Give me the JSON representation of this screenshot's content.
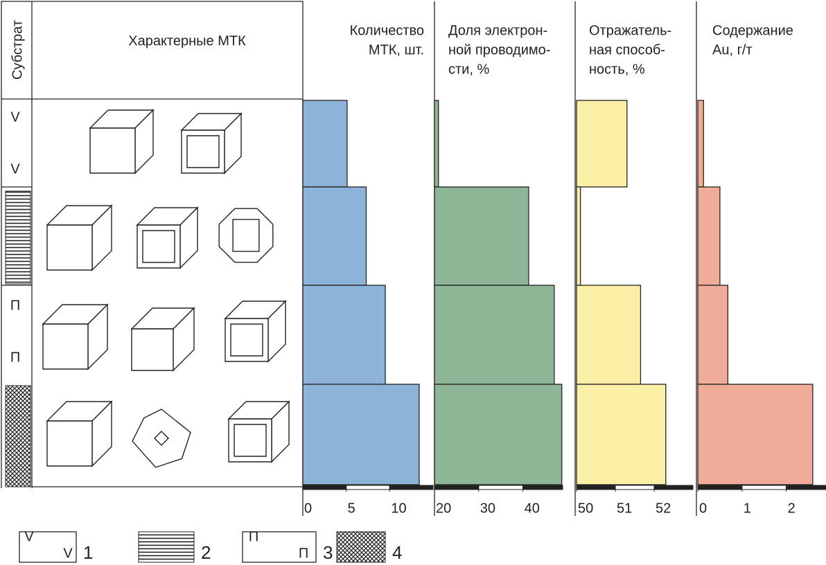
{
  "header": {
    "substrate": "Субстрат",
    "crystals": "Характерные МТК"
  },
  "substrate_marks": {
    "row_1": [
      "V",
      "V"
    ],
    "row_3": [
      "П",
      "П"
    ]
  },
  "chart_data": [
    {
      "type": "bar",
      "orientation": "horizontal",
      "title": [
        "Количество",
        "МТК, шт."
      ],
      "values": [
        5.1,
        7.3,
        9.5,
        13.4
      ],
      "color": "#8db3d9",
      "xlim": [
        0,
        15
      ],
      "xticks": [
        0,
        5,
        10
      ]
    },
    {
      "type": "bar",
      "orientation": "horizontal",
      "title": [
        "Доля электрон-",
        "ной проводимо-",
        "сти, %"
      ],
      "values": [
        20.9,
        41.3,
        47.1,
        48.8
      ],
      "color": "#8db596",
      "xlim": [
        20,
        49
      ],
      "xticks": [
        20,
        30,
        40
      ]
    },
    {
      "type": "bar",
      "orientation": "horizontal",
      "title": [
        "Отражатель-",
        "ная способ-",
        "ность, %"
      ],
      "values": [
        51.3,
        50.1,
        51.65,
        52.3
      ],
      "color": "#fbf0a6",
      "xlim": [
        50,
        53
      ],
      "xticks": [
        50,
        51,
        52
      ]
    },
    {
      "type": "bar",
      "orientation": "horizontal",
      "title": [
        "Содержание",
        "Au, г/т"
      ],
      "values": [
        0.13,
        0.5,
        0.68,
        2.6
      ],
      "color": "#f0ac98",
      "xlim": [
        0,
        2.9
      ],
      "xticks": [
        0,
        1,
        2
      ]
    }
  ],
  "legend": [
    {
      "symbols": [
        "V",
        "V"
      ],
      "label": "1"
    },
    {
      "label": "2"
    },
    {
      "symbols": [
        "П",
        "П"
      ],
      "label": "3"
    },
    {
      "label": "4"
    }
  ]
}
